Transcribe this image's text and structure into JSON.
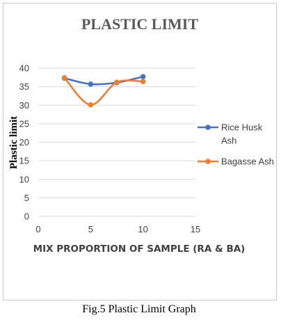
{
  "chart_data": {
    "type": "line",
    "title": "PLASTIC LIMIT",
    "xlabel": "MIX PROPORTION OF SAMPLE (RA & BA)",
    "ylabel": "Plastic limit",
    "xlim": [
      0,
      15
    ],
    "ylim": [
      0,
      40
    ],
    "xticks": [
      "0",
      "5",
      "10",
      "15"
    ],
    "yticks": [
      "0",
      "5",
      "10",
      "15",
      "20",
      "25",
      "30",
      "35",
      "40"
    ],
    "grid": true,
    "legend_position": "right",
    "series": [
      {
        "name_lines": [
          "Rice Husk",
          "Ash"
        ],
        "color": "#4472c4",
        "x": [
          2.5,
          5,
          7.5,
          10
        ],
        "y": [
          37.3,
          35.7,
          36.1,
          37.7
        ]
      },
      {
        "name_lines": [
          "Bagasse Ash"
        ],
        "color": "#ed7d31",
        "x": [
          2.5,
          5,
          7.5,
          10
        ],
        "y": [
          37.4,
          30.1,
          36.2,
          36.4
        ]
      }
    ]
  },
  "caption": "Fig.5 Plastic Limit Graph"
}
